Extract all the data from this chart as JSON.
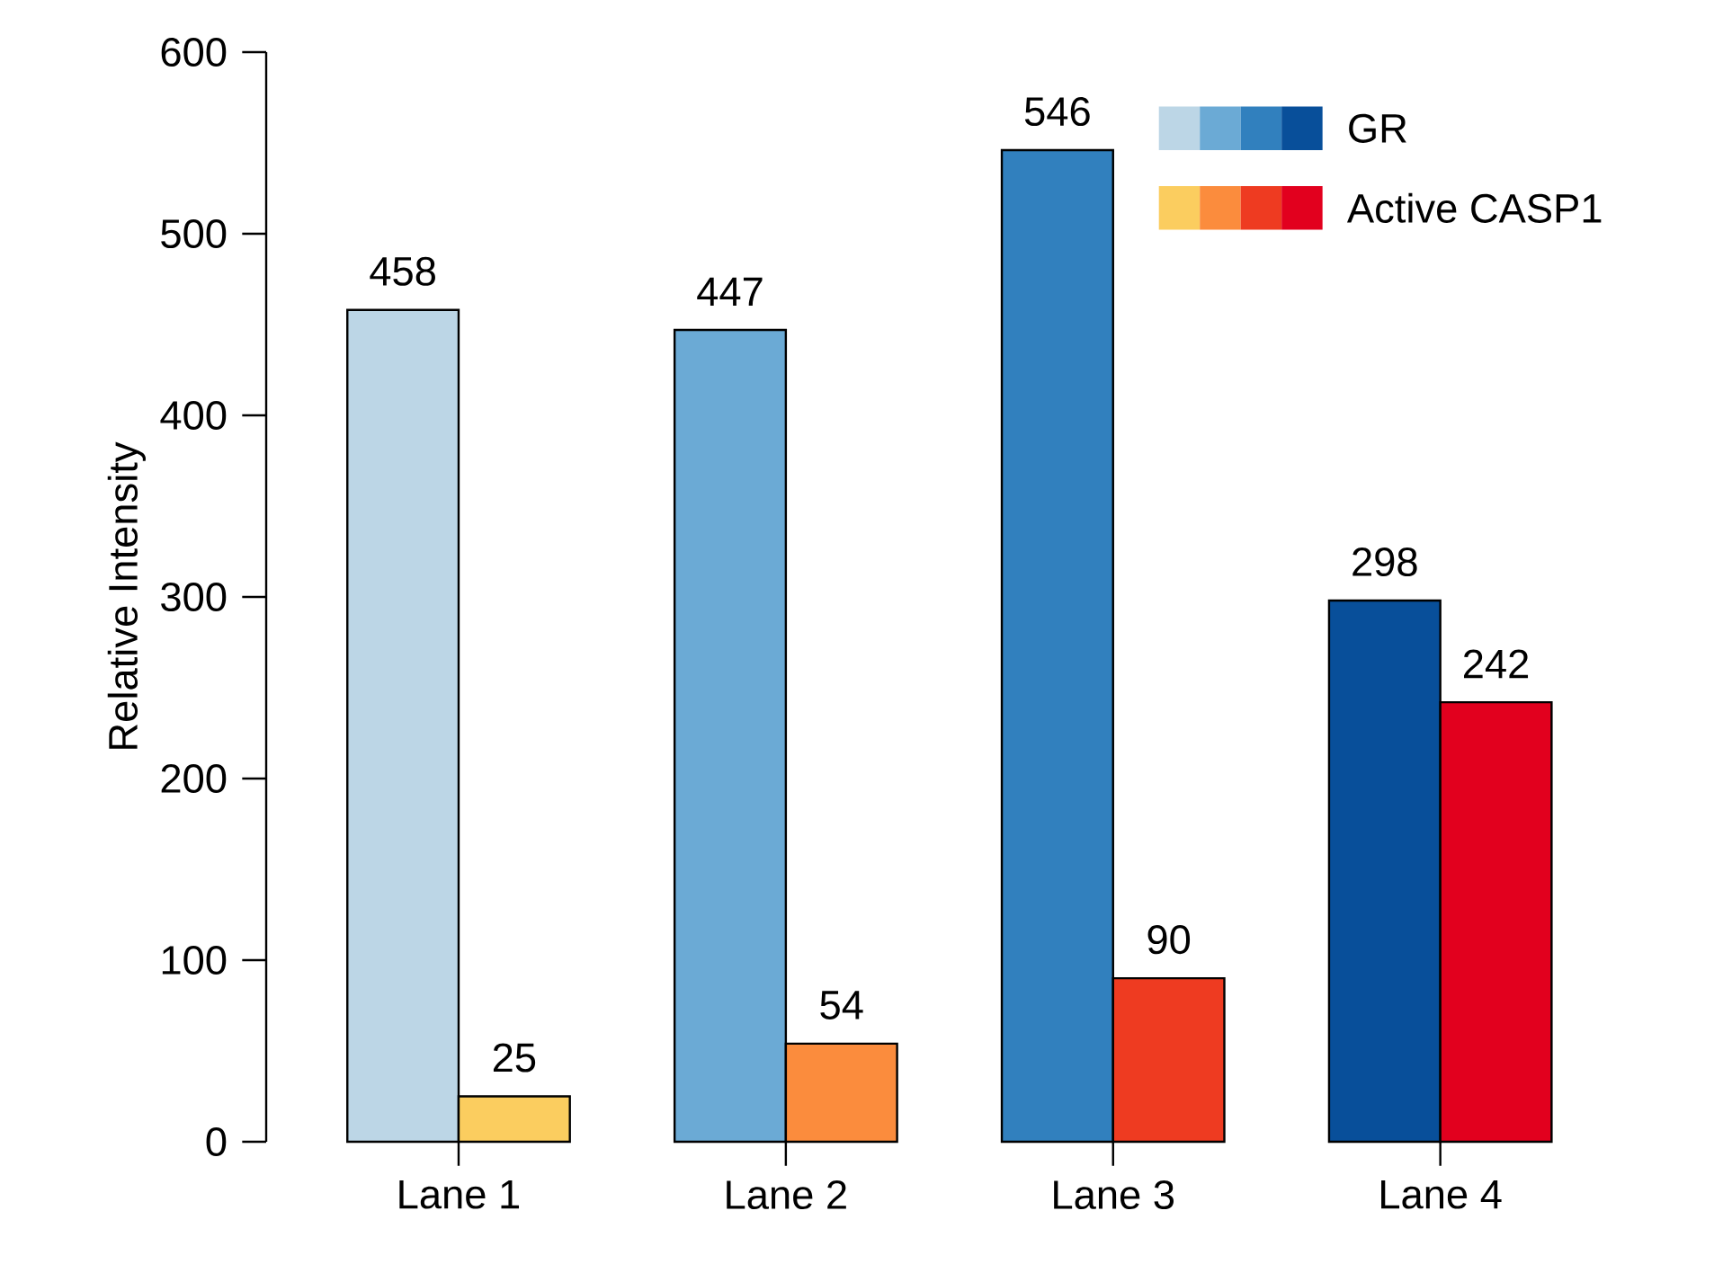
{
  "chart_data": {
    "type": "bar",
    "ylabel": "Relative Intensity",
    "categories": [
      "Lane 1",
      "Lane 2",
      "Lane 3",
      "Lane 4"
    ],
    "series": [
      {
        "name": "GR",
        "colors": [
          "#bcd6e6",
          "#6baad5",
          "#3180be",
          "#084f9a"
        ],
        "values": [
          458,
          447,
          546,
          298
        ]
      },
      {
        "name": "Active CASP1",
        "colors": [
          "#fbcd5f",
          "#fb8c3d",
          "#ee3b21",
          "#e2001e"
        ],
        "values": [
          25,
          54,
          90,
          242
        ]
      }
    ],
    "ylim": [
      0,
      600
    ],
    "yticks": [
      0,
      100,
      200,
      300,
      400,
      500,
      600
    ],
    "data_labels": true,
    "legend": "top right",
    "grid": false
  }
}
